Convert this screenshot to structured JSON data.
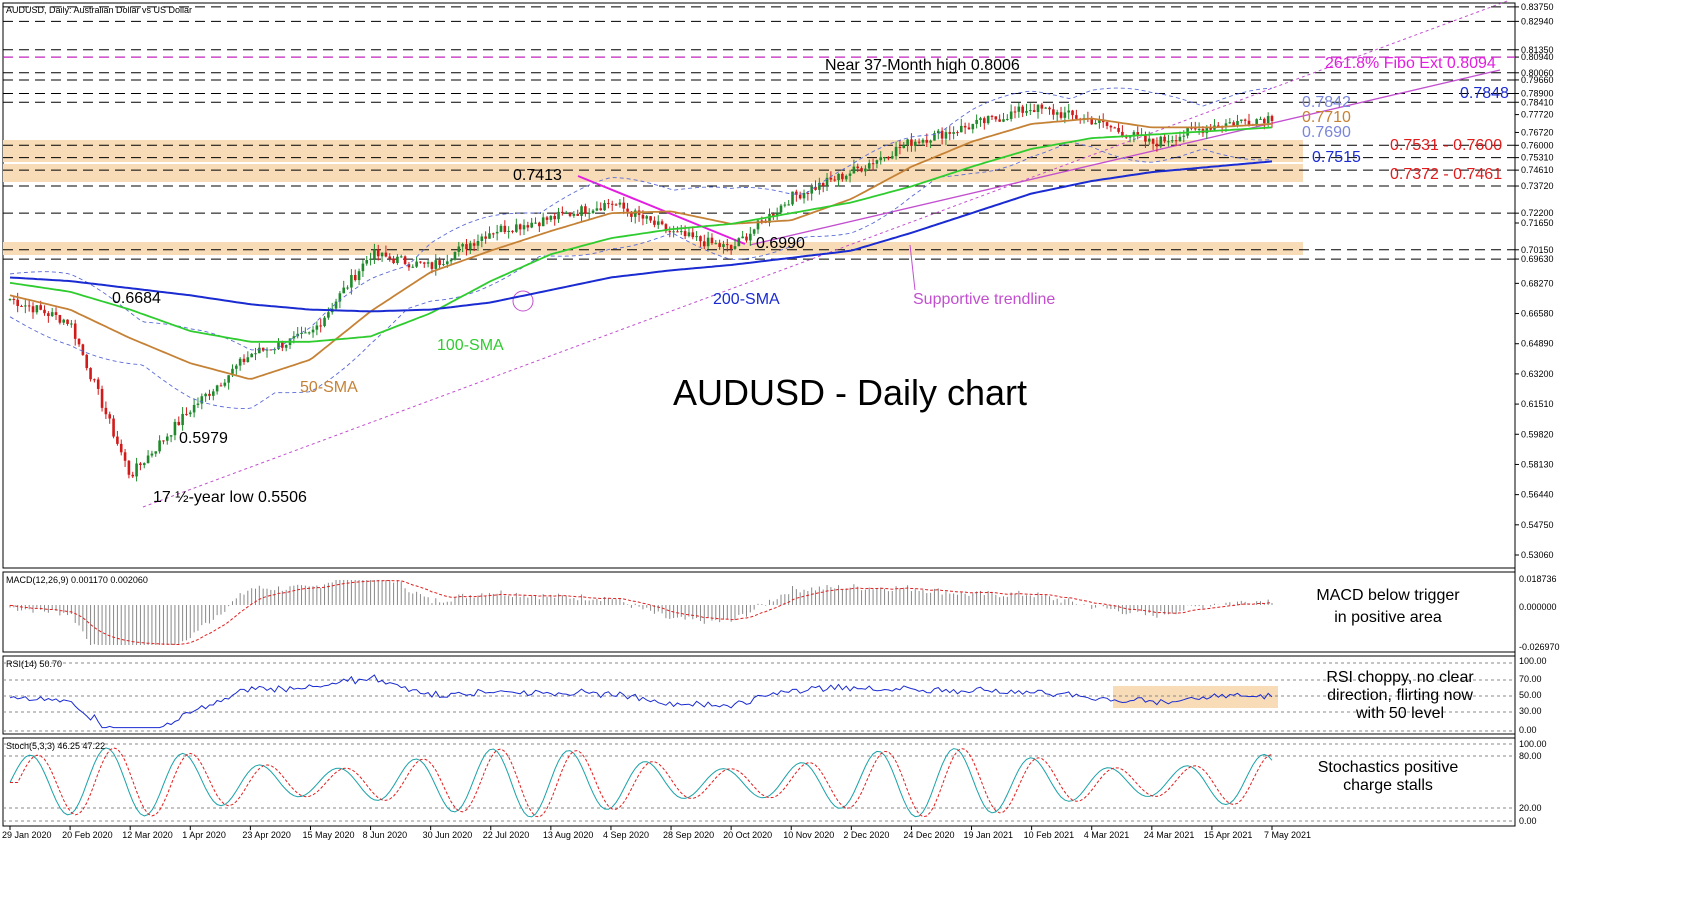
{
  "header": "AUDUSD, Daily:  Australian Dollar vs US Dollar",
  "main_title": "AUDUSD - Daily chart",
  "colors": {
    "candle_up": "#1f8a2b",
    "candle_down": "#d11a1a",
    "sma50": "#c58236",
    "sma100": "#2fcc2f",
    "sma200": "#1a2bd1",
    "bollinger": "#5a6bd6",
    "trendline": "#c24fcf",
    "fibo": "#e21fe0",
    "zone": "#f8dcb7",
    "macd_signal": "#e02020",
    "rsi_line": "#1a2bd1",
    "stoch_main": "#1aa2a8",
    "stoch_signal": "#e02020"
  },
  "price_ticks": [
    "0.83750",
    "0.82940",
    "0.81350",
    "0.80940",
    "0.80060",
    "0.79660",
    "0.78900",
    "0.78410",
    "0.77720",
    "0.76720",
    "0.76000",
    "0.75310",
    "0.74610",
    "0.73720",
    "0.72200",
    "0.71650",
    "0.70150",
    "0.69630",
    "0.68270",
    "0.66580",
    "0.64890",
    "0.63200",
    "0.61510",
    "0.59820",
    "0.58130",
    "0.56440",
    "0.54750",
    "0.53060"
  ],
  "date_ticks": [
    "29 Jan 2020",
    "20 Feb 2020",
    "12 Mar 2020",
    "1 Apr 2020",
    "23 Apr 2020",
    "15 May 2020",
    "8 Jun 2020",
    "30 Jun 2020",
    "22 Jul 2020",
    "13 Aug 2020",
    "4 Sep 2020",
    "28 Sep 2020",
    "20 Oct 2020",
    "10 Nov 2020",
    "2 Dec 2020",
    "24 Dec 2020",
    "19 Jan 2021",
    "10 Feb 2021",
    "4 Mar 2021",
    "24 Mar 2021",
    "15 Apr 2021",
    "7 May 2021"
  ],
  "annotations": {
    "high": "Near 37-Month high 0.8006",
    "fibo": "261.8% Fibo Ext 0.8094",
    "l7848": "0.7848",
    "l7842": "0.7842",
    "l7710": "0.7710",
    "l7690": "0.7690",
    "l7531": "0.7531 - 0.7600",
    "l7515": "0.7515",
    "l7372": "0.7372 - 0.7461",
    "l7413": "0.7413",
    "l6990": "0.6990",
    "l6684": "0.6684",
    "l5979": "0.5979",
    "low": "17 ½-year low 0.5506",
    "sma200": "200-SMA",
    "sma100": "100-SMA",
    "sma50": "50-SMA",
    "trend": "Supportive trendline"
  },
  "macd": {
    "label": "MACD(12,26,9) 0.001170 0.002060",
    "ticks": [
      "0.018736",
      "0.000000",
      "-0.026970"
    ],
    "note1": "MACD below trigger",
    "note2": "in positive area"
  },
  "rsi": {
    "label": "RSI(14) 50.70",
    "ticks": [
      "100.00",
      "70.00",
      "50.00",
      "30.00",
      "0.00"
    ],
    "note1": "RSI choppy, no clear",
    "note2": "direction, flirting now",
    "note3": "with 50 level"
  },
  "stoch": {
    "label": "Stoch(5,3,3) 46.25 47.22",
    "ticks": [
      "100.00",
      "80.00",
      "20.00",
      "0.00"
    ],
    "note1": "Stochastics positive",
    "note2": "charge stalls"
  },
  "chart_data": {
    "type": "line",
    "title": "AUDUSD - Daily chart",
    "x": [
      "29 Jan 2020",
      "20 Feb 2020",
      "12 Mar 2020",
      "1 Apr 2020",
      "23 Apr 2020",
      "15 May 2020",
      "8 Jun 2020",
      "30 Jun 2020",
      "22 Jul 2020",
      "13 Aug 2020",
      "4 Sep 2020",
      "28 Sep 2020",
      "20 Oct 2020",
      "10 Nov 2020",
      "2 Dec 2020",
      "24 Dec 2020",
      "19 Jan 2021",
      "10 Feb 2021",
      "4 Mar 2021",
      "24 Mar 2021",
      "15 Apr 2021",
      "7 May 2021"
    ],
    "ylim": [
      0.525,
      0.838
    ],
    "series": [
      {
        "name": "AUDUSD",
        "values": [
          0.674,
          0.661,
          0.575,
          0.612,
          0.643,
          0.654,
          0.699,
          0.692,
          0.712,
          0.719,
          0.728,
          0.711,
          0.702,
          0.731,
          0.745,
          0.762,
          0.771,
          0.781,
          0.774,
          0.761,
          0.771,
          0.776
        ]
      },
      {
        "name": "50-SMA",
        "values": [
          0.676,
          0.668,
          0.652,
          0.638,
          0.629,
          0.64,
          0.667,
          0.689,
          0.701,
          0.712,
          0.722,
          0.723,
          0.716,
          0.718,
          0.73,
          0.748,
          0.762,
          0.772,
          0.775,
          0.77,
          0.77,
          0.772
        ]
      },
      {
        "name": "100-SMA",
        "values": [
          0.683,
          0.678,
          0.668,
          0.656,
          0.65,
          0.65,
          0.653,
          0.666,
          0.684,
          0.699,
          0.708,
          0.713,
          0.716,
          0.722,
          0.728,
          0.737,
          0.748,
          0.758,
          0.764,
          0.766,
          0.768,
          0.77
        ]
      },
      {
        "name": "200-SMA",
        "values": [
          0.686,
          0.684,
          0.68,
          0.676,
          0.671,
          0.668,
          0.667,
          0.668,
          0.672,
          0.679,
          0.686,
          0.69,
          0.693,
          0.697,
          0.701,
          0.711,
          0.722,
          0.733,
          0.74,
          0.745,
          0.748,
          0.751
        ]
      }
    ],
    "levels": [
      0.8375,
      0.8294,
      0.8135,
      0.8094,
      0.8006,
      0.7966,
      0.789,
      0.7841,
      0.76,
      0.7531,
      0.7461,
      0.7372,
      0.722,
      0.7015,
      0.6963
    ]
  }
}
